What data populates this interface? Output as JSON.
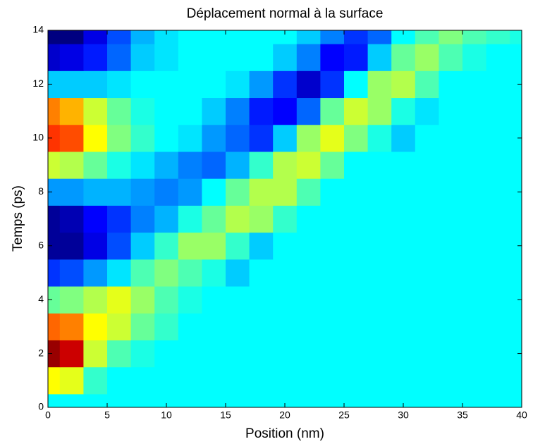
{
  "chart_data": {
    "type": "heatmap",
    "title": "Déplacement normal à la surface",
    "xlabel": "Position (nm)",
    "ylabel": "Temps (ps)",
    "xlim": [
      0,
      40
    ],
    "ylim": [
      0,
      14
    ],
    "xticks": [
      0,
      5,
      10,
      15,
      20,
      25,
      30,
      35,
      40
    ],
    "yticks": [
      0,
      2,
      4,
      6,
      8,
      10,
      12,
      14
    ],
    "colormap": "jet",
    "zlim": [
      -0.75,
      1.25
    ],
    "x": [
      0,
      2,
      4,
      6,
      8,
      10,
      12,
      14,
      16,
      18,
      20,
      22,
      24,
      26,
      28,
      30,
      32,
      34,
      36,
      38,
      40
    ],
    "y": [
      0,
      1,
      2,
      3,
      4,
      5,
      6,
      7,
      8,
      9,
      10,
      11,
      12,
      13,
      14
    ],
    "z": [
      [
        0,
        0,
        0,
        0,
        0,
        0,
        0,
        0,
        0,
        0,
        0,
        0,
        0,
        0,
        0,
        0,
        0,
        0,
        0,
        0,
        0
      ],
      [
        0.5,
        0.45,
        0.1,
        0,
        0,
        0,
        0,
        0,
        0,
        0,
        0,
        0,
        0,
        0,
        0,
        0,
        0,
        0,
        0,
        0,
        0
      ],
      [
        1.2,
        1.1,
        0.4,
        0.15,
        0.05,
        0,
        0,
        0,
        0,
        0,
        0,
        0,
        0,
        0,
        0,
        0,
        0,
        0,
        0,
        0,
        0
      ],
      [
        0.8,
        0.75,
        0.5,
        0.4,
        0.2,
        0.1,
        0,
        0,
        0,
        0,
        0,
        0,
        0,
        0,
        0,
        0,
        0,
        0,
        0,
        0,
        0
      ],
      [
        0.2,
        0.25,
        0.35,
        0.45,
        0.3,
        0.15,
        0.05,
        0,
        0,
        0,
        0,
        0,
        0,
        0,
        0,
        0,
        0,
        0,
        0,
        0,
        0
      ],
      [
        -0.4,
        -0.35,
        -0.2,
        -0.05,
        0.15,
        0.25,
        0.15,
        0.05,
        -0.1,
        0,
        0,
        0,
        0,
        0,
        0,
        0,
        0,
        0,
        0,
        0,
        0
      ],
      [
        -0.7,
        -0.7,
        -0.55,
        -0.35,
        -0.1,
        0.1,
        0.3,
        0.3,
        0.1,
        -0.1,
        0,
        0,
        0,
        0,
        0,
        0,
        0,
        0,
        0,
        0,
        0
      ],
      [
        -0.7,
        -0.65,
        -0.5,
        -0.4,
        -0.25,
        -0.15,
        0.05,
        0.2,
        0.35,
        0.3,
        0.1,
        0,
        0,
        0,
        0,
        0,
        0,
        0,
        0,
        0,
        0
      ],
      [
        -0.2,
        -0.2,
        -0.15,
        -0.15,
        -0.2,
        -0.25,
        -0.2,
        0,
        0.2,
        0.35,
        0.35,
        0.15,
        0,
        0,
        0,
        0,
        0,
        0,
        0,
        0,
        0
      ],
      [
        0.4,
        0.35,
        0.2,
        0.05,
        -0.05,
        -0.15,
        -0.25,
        -0.3,
        -0.15,
        0.1,
        0.35,
        0.4,
        0.2,
        0,
        0,
        0,
        0,
        0,
        0,
        0,
        0
      ],
      [
        0.9,
        0.85,
        0.5,
        0.25,
        0.1,
        0,
        -0.05,
        -0.2,
        -0.3,
        -0.4,
        -0.1,
        0.3,
        0.45,
        0.25,
        0.05,
        -0.1,
        0,
        0,
        0,
        0,
        0
      ],
      [
        0.75,
        0.65,
        0.4,
        0.2,
        0.05,
        0,
        0,
        -0.1,
        -0.25,
        -0.45,
        -0.5,
        -0.3,
        0.2,
        0.4,
        0.3,
        0.05,
        -0.05,
        0,
        0,
        0,
        0
      ],
      [
        -0.1,
        -0.1,
        -0.1,
        -0.05,
        0,
        0,
        0,
        0,
        -0.05,
        -0.2,
        -0.4,
        -0.6,
        -0.4,
        0,
        0.3,
        0.35,
        0.15,
        0,
        0,
        0,
        0
      ],
      [
        -0.6,
        -0.55,
        -0.45,
        -0.3,
        -0.1,
        -0.05,
        0,
        0,
        0,
        0,
        -0.1,
        -0.25,
        -0.5,
        -0.45,
        -0.1,
        0.2,
        0.3,
        0.15,
        0.05,
        0,
        0
      ],
      [
        -0.8,
        -0.75,
        -0.55,
        -0.35,
        -0.15,
        -0.05,
        0,
        0,
        0,
        0,
        0,
        -0.1,
        -0.25,
        -0.4,
        -0.3,
        0,
        0.15,
        0.25,
        0.15,
        0.1,
        0.05
      ]
    ]
  }
}
